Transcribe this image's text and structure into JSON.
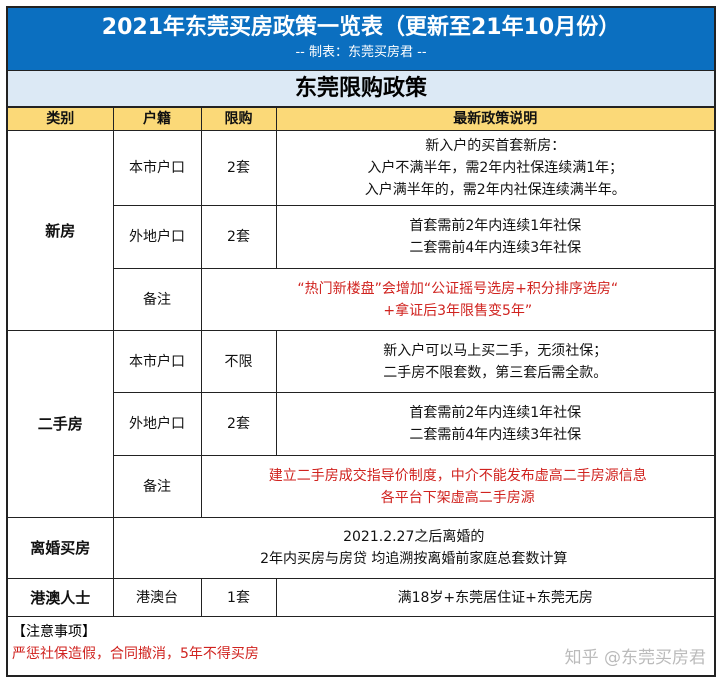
{
  "title": "2021年东莞买房政策一览表（更新至21年10月份）",
  "subtitle": "-- 制表：东莞买房君 --",
  "section": "东莞限购政策",
  "headers": [
    "类别",
    "户籍",
    "限购",
    "最新政策说明"
  ],
  "new_house": {
    "category": "新房",
    "rows": [
      {
        "hukou": "本市户口",
        "limit": "2套",
        "desc": [
          "新入户的买首套新房：",
          "入户不满半年，需2年内社保连续满1年；",
          "入户满半年的，需2年内社保连续满半年。"
        ]
      },
      {
        "hukou": "外地户口",
        "limit": "2套",
        "desc": [
          "首套需前2年内连续1年社保",
          "二套需前4年内连续3年社保"
        ]
      }
    ],
    "note_label": "备注",
    "note": [
      "“热门新楼盘”会增加“公证摇号选房+积分排序选房“",
      "+拿证后3年限售变5年”"
    ]
  },
  "second_house": {
    "category": "二手房",
    "rows": [
      {
        "hukou": "本市户口",
        "limit": "不限",
        "desc": [
          "新入户可以马上买二手，无须社保；",
          "二手房不限套数，第三套后需全款。"
        ]
      },
      {
        "hukou": "外地户口",
        "limit": "2套",
        "desc": [
          "首套需前2年内连续1年社保",
          "二套需前4年内连续3年社保"
        ]
      }
    ],
    "note_label": "备注",
    "note": [
      "建立二手房成交指导价制度，中介不能发布虚高二手房源信息",
      "各平台下架虚高二手房源"
    ]
  },
  "divorce": {
    "category": "离婚买房",
    "desc": [
      "2021.2.27之后离婚的",
      "2年内买房与房贷 均追溯按离婚前家庭总套数计算"
    ]
  },
  "hk": {
    "category": "港澳人士",
    "hukou": "港澳台",
    "limit": "1套",
    "desc": "满18岁+东莞居住证+东莞无房"
  },
  "notes": {
    "label": "【注意事项】",
    "text": "严惩社保造假，合同撤消，5年不得买房"
  },
  "watermark": "知乎 @东莞买房君",
  "colors": {
    "title_bg": "#0b6fc0",
    "section_bg": "#dce9f5",
    "header_bg": "#fbd978",
    "warning": "#d0231f"
  }
}
